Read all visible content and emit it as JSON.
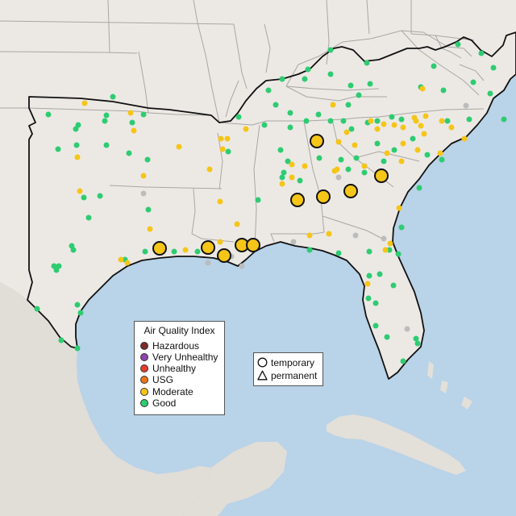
{
  "map": {
    "region": "southeastern-united-states",
    "colors": {
      "water": "#b9d3e8",
      "land": "#ece9e5",
      "land_shade": "#e0dcd6",
      "borders": "#a9a6a3",
      "outline": "#111111"
    }
  },
  "legend": {
    "title": "Air Quality Index",
    "categories": [
      {
        "label": "Hazardous",
        "color": "#7e2b2b"
      },
      {
        "label": "Very Unhealthy",
        "color": "#8e44ad"
      },
      {
        "label": "Unhealthy",
        "color": "#e53b2c"
      },
      {
        "label": "USG",
        "color": "#e8761c"
      },
      {
        "label": "Moderate",
        "color": "#f5c518"
      },
      {
        "label": "Good",
        "color": "#2ecc71"
      }
    ],
    "no_data_color": "#bcbcbc"
  },
  "shape_legend": {
    "temporary": "temporary",
    "permanent": "permanent"
  }
}
